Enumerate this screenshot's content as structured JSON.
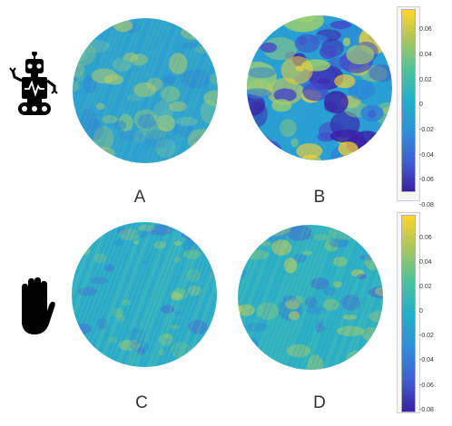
{
  "panels": [
    {
      "id": "A",
      "label": "A"
    },
    {
      "id": "B",
      "label": "B"
    },
    {
      "id": "C",
      "label": "C"
    },
    {
      "id": "D",
      "label": "D"
    }
  ],
  "colorbars": [
    {
      "ticks": [
        "0.06",
        "0.04",
        "0.02",
        "0",
        "-0.02",
        "-0.04",
        "-0.06",
        "-0.08"
      ],
      "range": [
        -0.08,
        0.07
      ]
    },
    {
      "ticks": [
        "0.06",
        "0.04",
        "0.02",
        "0",
        "-0.02",
        "-0.04",
        "-0.06",
        "-0.08"
      ],
      "range": [
        -0.08,
        0.07
      ]
    }
  ],
  "rows": [
    {
      "icon": "robot-icon"
    },
    {
      "icon": "hand-icon"
    }
  ],
  "colormap": [
    "#3b1fa8",
    "#3f5fd6",
    "#2f90d8",
    "#20b0c8",
    "#4cc39c",
    "#a8c65c",
    "#ffd42a"
  ]
}
